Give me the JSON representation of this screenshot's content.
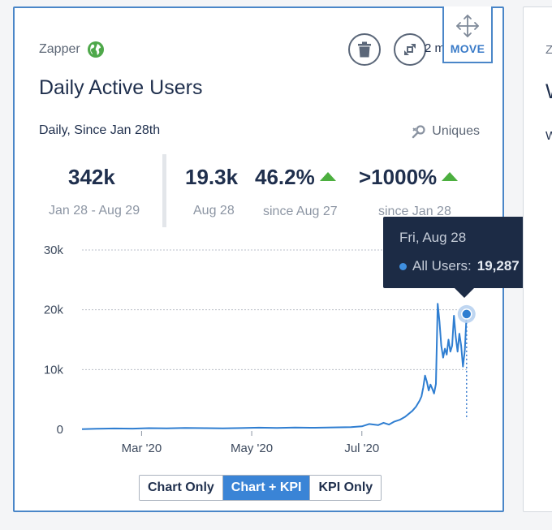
{
  "card": {
    "app_name": "Zapper",
    "title": "Daily Active Users",
    "subtitle": "Daily, Since Jan 28th",
    "uniques_label": "Uniques",
    "overflow_text": "2 m",
    "move_label": "MOVE"
  },
  "side_card": {
    "line1": "Z",
    "line2": "W",
    "line3": "W"
  },
  "kpis": [
    {
      "value": "342k",
      "label": "Jan 28 - Aug 29",
      "trend": ""
    },
    {
      "value": "19.3k",
      "label": "Aug 28",
      "trend": ""
    },
    {
      "value": "46.2%",
      "label": "since Aug 27",
      "trend": "up"
    },
    {
      "value": ">1000%",
      "label": "since Jan 28",
      "trend": "up"
    }
  ],
  "tooltip": {
    "date": "Fri, Aug 28",
    "series_label": "All Users:",
    "value": "19,287"
  },
  "toggles": [
    {
      "label": "Chart Only",
      "active": false
    },
    {
      "label": "Chart + KPI",
      "active": true
    },
    {
      "label": "KPI Only",
      "active": false
    }
  ],
  "colors": {
    "line": "#2f7ed1",
    "accent_border": "#4a86c8",
    "trend_up": "#4caf3f",
    "tooltip_bg": "#1c2b45"
  },
  "chart_data": {
    "type": "line",
    "title": "",
    "xlabel": "",
    "ylabel": "",
    "x_range": [
      "2020-01-28",
      "2020-08-29"
    ],
    "ylim": [
      0,
      30000
    ],
    "y_ticks": [
      0,
      10000,
      20000,
      30000
    ],
    "y_tick_labels": [
      "0",
      "10k",
      "20k",
      "30k"
    ],
    "x_ticks": [
      "2020-03-01",
      "2020-05-01",
      "2020-07-01"
    ],
    "x_tick_labels": [
      "Mar '20",
      "May '20",
      "Jul '20"
    ],
    "grid": true,
    "highlight": {
      "x": "2020-08-28",
      "y": 19287
    },
    "series": [
      {
        "name": "All Users",
        "points": [
          [
            "2020-01-28",
            30
          ],
          [
            "2020-02-05",
            100
          ],
          [
            "2020-02-15",
            150
          ],
          [
            "2020-02-25",
            120
          ],
          [
            "2020-03-05",
            200
          ],
          [
            "2020-03-15",
            180
          ],
          [
            "2020-03-25",
            250
          ],
          [
            "2020-04-05",
            200
          ],
          [
            "2020-04-15",
            180
          ],
          [
            "2020-04-25",
            220
          ],
          [
            "2020-05-05",
            280
          ],
          [
            "2020-05-15",
            250
          ],
          [
            "2020-05-25",
            300
          ],
          [
            "2020-06-05",
            270
          ],
          [
            "2020-06-15",
            320
          ],
          [
            "2020-06-25",
            380
          ],
          [
            "2020-07-01",
            500
          ],
          [
            "2020-07-05",
            900
          ],
          [
            "2020-07-10",
            700
          ],
          [
            "2020-07-13",
            1100
          ],
          [
            "2020-07-16",
            800
          ],
          [
            "2020-07-19",
            1300
          ],
          [
            "2020-07-22",
            1600
          ],
          [
            "2020-07-25",
            2100
          ],
          [
            "2020-07-27",
            2600
          ],
          [
            "2020-07-29",
            3100
          ],
          [
            "2020-07-31",
            3800
          ],
          [
            "2020-08-02",
            4800
          ],
          [
            "2020-08-03",
            5500
          ],
          [
            "2020-08-04",
            7000
          ],
          [
            "2020-08-05",
            9000
          ],
          [
            "2020-08-06",
            8000
          ],
          [
            "2020-08-07",
            6500
          ],
          [
            "2020-08-08",
            7500
          ],
          [
            "2020-08-09",
            6800
          ],
          [
            "2020-08-10",
            6000
          ],
          [
            "2020-08-11",
            7600
          ],
          [
            "2020-08-12",
            21000
          ],
          [
            "2020-08-13",
            18000
          ],
          [
            "2020-08-14",
            14000
          ],
          [
            "2020-08-15",
            12000
          ],
          [
            "2020-08-16",
            13500
          ],
          [
            "2020-08-17",
            12500
          ],
          [
            "2020-08-18",
            15000
          ],
          [
            "2020-08-19",
            13000
          ],
          [
            "2020-08-20",
            14000
          ],
          [
            "2020-08-21",
            19000
          ],
          [
            "2020-08-22",
            15500
          ],
          [
            "2020-08-23",
            13000
          ],
          [
            "2020-08-24",
            16000
          ],
          [
            "2020-08-25",
            14000
          ],
          [
            "2020-08-26",
            10500
          ],
          [
            "2020-08-27",
            13200
          ],
          [
            "2020-08-28",
            19287
          ]
        ]
      }
    ]
  }
}
